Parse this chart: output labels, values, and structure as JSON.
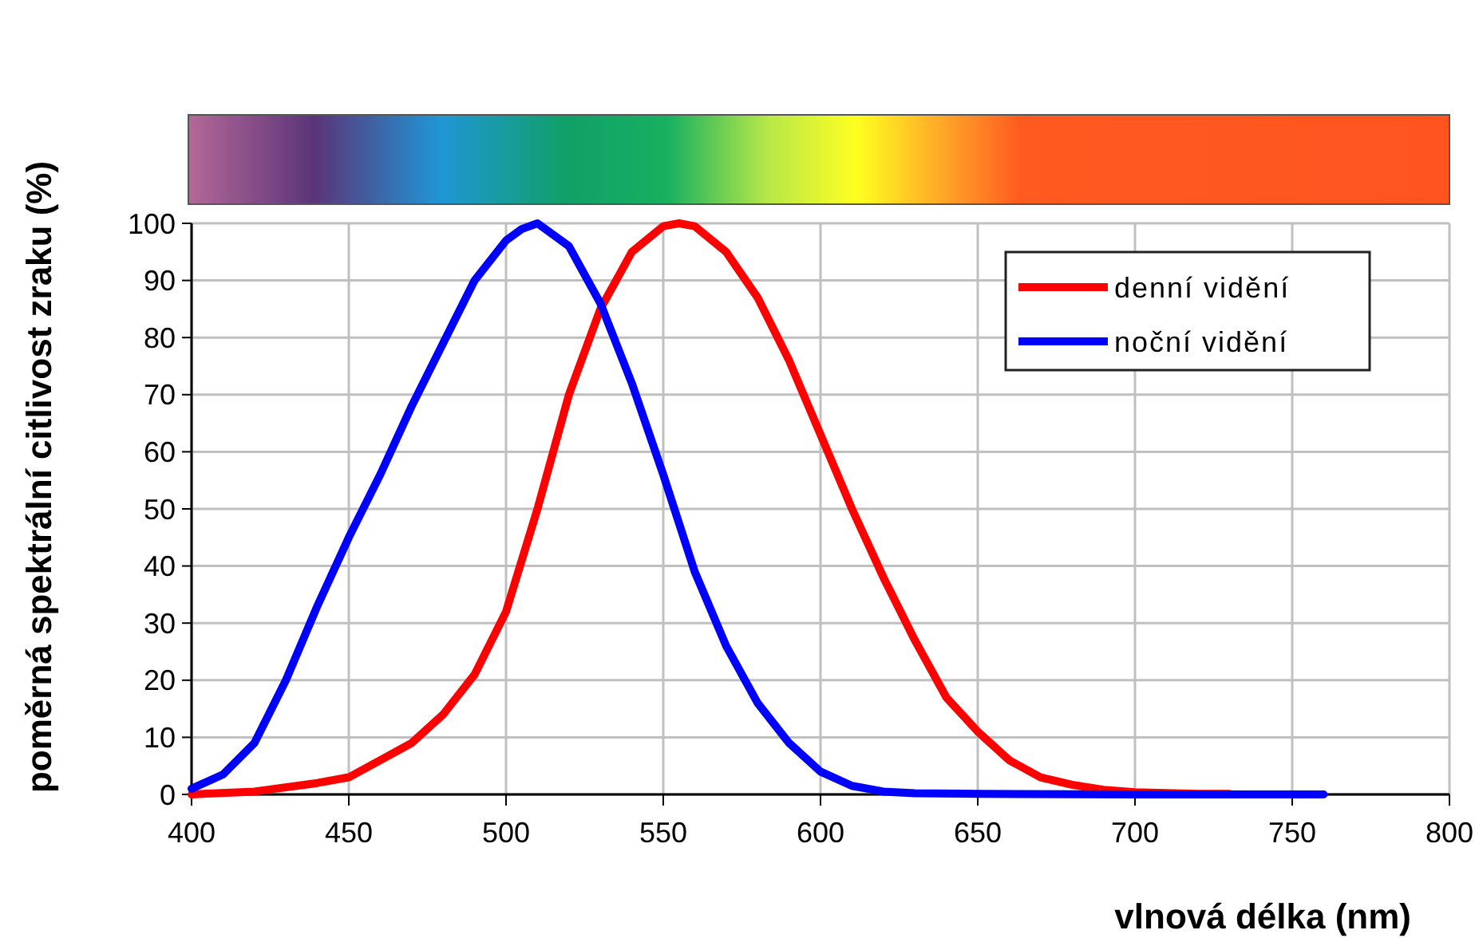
{
  "chart_data": {
    "type": "line",
    "xlabel": "vlnová délka (nm)",
    "ylabel": "poměrná spektrální citlivost zraku (%)",
    "xlim": [
      400,
      800
    ],
    "xticks": [
      400,
      450,
      500,
      550,
      600,
      650,
      700,
      750,
      800
    ],
    "ylim": [
      0,
      100
    ],
    "yticks": [
      0,
      10,
      20,
      30,
      40,
      50,
      60,
      70,
      80,
      90,
      100
    ],
    "grid": true,
    "legend": "top right",
    "marker": "none",
    "line_style": "solid",
    "series": [
      {
        "name": "denní vidění",
        "color": "#ff0000",
        "x": [
          400,
          420,
          440,
          450,
          460,
          470,
          480,
          490,
          500,
          510,
          520,
          530,
          540,
          550,
          555,
          560,
          570,
          580,
          590,
          600,
          610,
          620,
          630,
          640,
          650,
          660,
          670,
          680,
          690,
          700,
          720,
          730
        ],
        "values": [
          0,
          0.5,
          2,
          3,
          6,
          9,
          14,
          21,
          32,
          50,
          70,
          85,
          95,
          99.5,
          100,
          99.5,
          95,
          87,
          76,
          63,
          50,
          38,
          27,
          17,
          11,
          6,
          3,
          1.7,
          0.8,
          0.4,
          0.1,
          0.1
        ]
      },
      {
        "name": "noční vidění",
        "color": "#0000ff",
        "x": [
          400,
          410,
          420,
          430,
          440,
          450,
          460,
          470,
          480,
          490,
          500,
          505,
          510,
          520,
          530,
          540,
          550,
          560,
          570,
          580,
          590,
          600,
          610,
          620,
          630,
          650,
          700,
          760
        ],
        "values": [
          1,
          3.5,
          9,
          20,
          33,
          45,
          56,
          68,
          79,
          90,
          97,
          99,
          100,
          96,
          86,
          72,
          56,
          39,
          26,
          16,
          9,
          4,
          1.5,
          0.5,
          0.2,
          0.1,
          0,
          0
        ]
      }
    ]
  }
}
